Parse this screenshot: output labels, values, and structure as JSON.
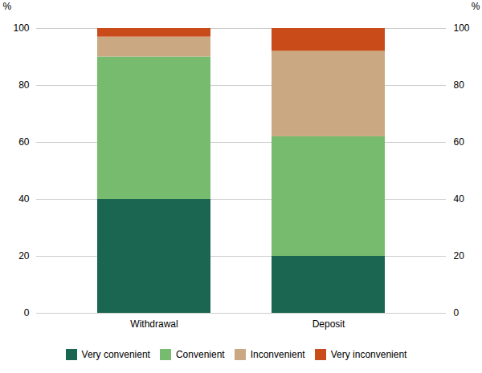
{
  "chart_data": {
    "type": "bar",
    "stacked": true,
    "categories": [
      "Withdrawal",
      "Deposit"
    ],
    "series": [
      {
        "name": "Very convenient",
        "color": "#1a6651",
        "values": [
          40,
          20
        ]
      },
      {
        "name": "Convenient",
        "color": "#77bb6e",
        "values": [
          50,
          42
        ]
      },
      {
        "name": "Inconvenient",
        "color": "#c9a882",
        "values": [
          7,
          30
        ]
      },
      {
        "name": "Very inconvenient",
        "color": "#c94b1a",
        "values": [
          3,
          8
        ]
      }
    ],
    "ylabel": "%",
    "y2label": "%",
    "ylim": [
      0,
      100
    ],
    "yticks": [
      0,
      20,
      40,
      60,
      80,
      100
    ],
    "y2lim": [
      0,
      100
    ],
    "y2ticks": [
      0,
      20,
      40,
      60,
      80,
      100
    ],
    "grid": true,
    "legend": "bottom"
  }
}
